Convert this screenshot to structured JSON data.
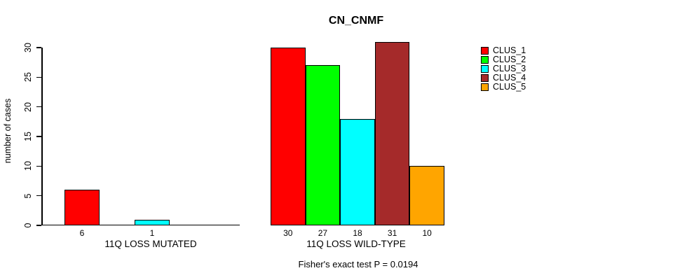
{
  "figure": {
    "title": "CN_CNMF",
    "annotation": "Fisher's exact test P = 0.0194"
  },
  "chart_data": {
    "type": "bar",
    "title": "CN_CNMF",
    "xlabel": "",
    "ylabel": "number of cases",
    "ylim": [
      0,
      30
    ],
    "yticks": [
      0,
      5,
      10,
      15,
      20,
      25,
      30
    ],
    "grid": false,
    "legend_position": "right-outside",
    "categories": [
      "11Q LOSS MUTATED",
      "11Q LOSS WILD-TYPE"
    ],
    "series": [
      {
        "name": "CLUS_1",
        "color": "#FF0000",
        "values": [
          6,
          30
        ]
      },
      {
        "name": "CLUS_2",
        "color": "#00FF00",
        "values": [
          0,
          27
        ]
      },
      {
        "name": "CLUS_3",
        "color": "#00FFFF",
        "values": [
          1,
          18
        ]
      },
      {
        "name": "CLUS_4",
        "color": "#A52A2A",
        "values": [
          0,
          31
        ]
      },
      {
        "name": "CLUS_5",
        "color": "#FFA500",
        "values": [
          0,
          10
        ]
      }
    ],
    "bar_value_labels": [
      [
        "6",
        "",
        "1",
        "",
        ""
      ],
      [
        "30",
        "27",
        "18",
        "31",
        "10"
      ]
    ],
    "annotation": "Fisher's exact test P = 0.0194",
    "axis_color": "#000000",
    "background_color": "#FFFFFF"
  }
}
